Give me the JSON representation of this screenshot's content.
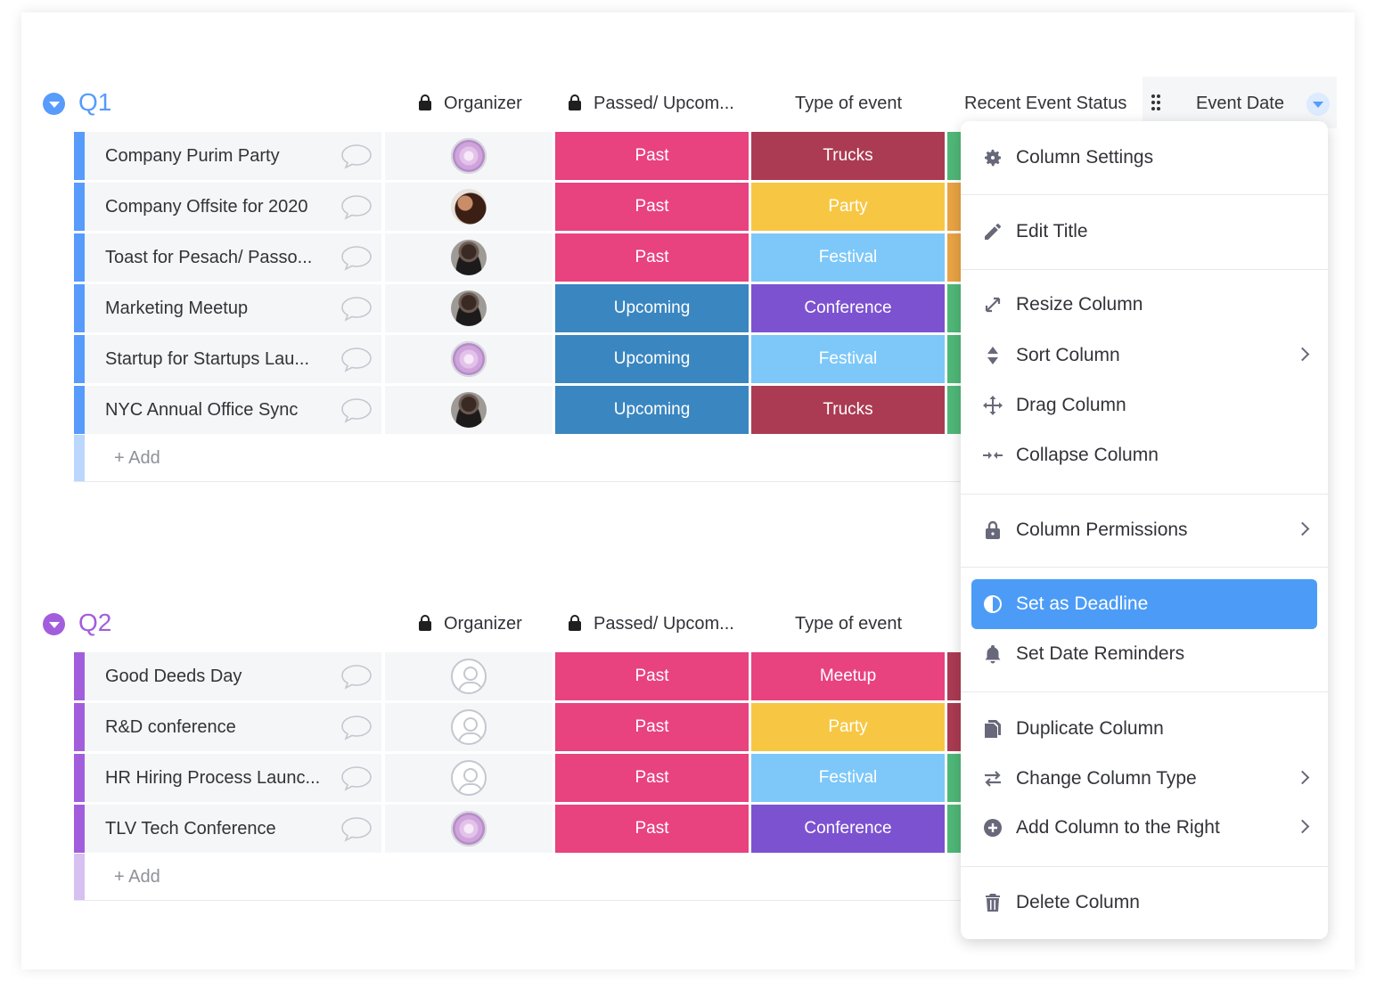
{
  "groups": [
    {
      "title": "Q1",
      "color": "#579bfc",
      "columns": {
        "organizer": "Organizer",
        "passed": "Passed/ Upcom...",
        "type": "Type of event",
        "status": "Recent Event Status",
        "date": "Event Date"
      },
      "rows": [
        {
          "name": "Company Purim Party",
          "avatar": "flower-avatar",
          "passed": "Past",
          "type": "Trucks"
        },
        {
          "name": "Company Offsite for 2020",
          "avatar": "curly-hair-avatar",
          "passed": "Past",
          "type": "Party"
        },
        {
          "name": "Toast for Pesach/ Passo...",
          "avatar": "dark-hair-avatar",
          "passed": "Past",
          "type": "Festival"
        },
        {
          "name": "Marketing Meetup",
          "avatar": "dark-hair-avatar",
          "passed": "Upcoming",
          "type": "Conference"
        },
        {
          "name": "Startup for Startups Lau...",
          "avatar": "flower-avatar",
          "passed": "Upcoming",
          "type": "Festival"
        },
        {
          "name": "NYC Annual Office Sync",
          "avatar": "dark-hair-avatar",
          "passed": "Upcoming",
          "type": "Trucks"
        }
      ],
      "add_label": "+ Add"
    },
    {
      "title": "Q2",
      "color": "#a25ddc",
      "columns": {
        "organizer": "Organizer",
        "passed": "Passed/ Upcom...",
        "type": "Type of event"
      },
      "rows": [
        {
          "name": "Good Deeds Day",
          "avatar": "empty-avatar",
          "passed": "Past",
          "type": "Meetup"
        },
        {
          "name": "R&D conference",
          "avatar": "empty-avatar",
          "passed": "Past",
          "type": "Party"
        },
        {
          "name": "HR Hiring Process Launc...",
          "avatar": "empty-avatar",
          "passed": "Past",
          "type": "Festival"
        },
        {
          "name": "TLV Tech Conference",
          "avatar": "flower-avatar",
          "passed": "Past",
          "type": "Conference"
        }
      ],
      "add_label": "+ Add"
    }
  ],
  "status_colors": {
    "Past": "#e8427f",
    "Upcoming": "#3a86c1",
    "Trucks": "#ab3b53",
    "Party": "#f7c744",
    "Festival": "#7dc8f9",
    "Conference": "#7c52d1",
    "Meetup": "#e8427f"
  },
  "status_edge_colors": {
    "q1": [
      "#50b878",
      "#e9a444",
      "#e9a444",
      "#50b878",
      "#50b878",
      "#50b878"
    ],
    "q2": [
      "#ab3b53",
      "#ab3b53",
      "#50b878",
      "#50b878"
    ]
  },
  "column_menu": {
    "items": [
      {
        "label": "Column Settings",
        "icon": "gear-icon"
      },
      {
        "label": "Edit Title",
        "icon": "pencil-icon"
      },
      {
        "label": "Resize Column",
        "icon": "resize-icon"
      },
      {
        "label": "Sort Column",
        "icon": "sort-icon",
        "submenu": true
      },
      {
        "label": "Drag Column",
        "icon": "move-icon"
      },
      {
        "label": "Collapse Column",
        "icon": "collapse-icon"
      },
      {
        "label": "Column Permissions",
        "icon": "lock-icon",
        "submenu": true
      },
      {
        "label": "Set as Deadline",
        "icon": "deadline-icon",
        "selected": true
      },
      {
        "label": "Set Date Reminders",
        "icon": "bell-icon"
      },
      {
        "label": "Duplicate Column",
        "icon": "duplicate-icon"
      },
      {
        "label": "Change Column Type",
        "icon": "swap-icon",
        "submenu": true
      },
      {
        "label": "Add Column to the Right",
        "icon": "add-circle-icon",
        "submenu": true
      },
      {
        "label": "Delete Column",
        "icon": "trash-icon"
      }
    ]
  }
}
